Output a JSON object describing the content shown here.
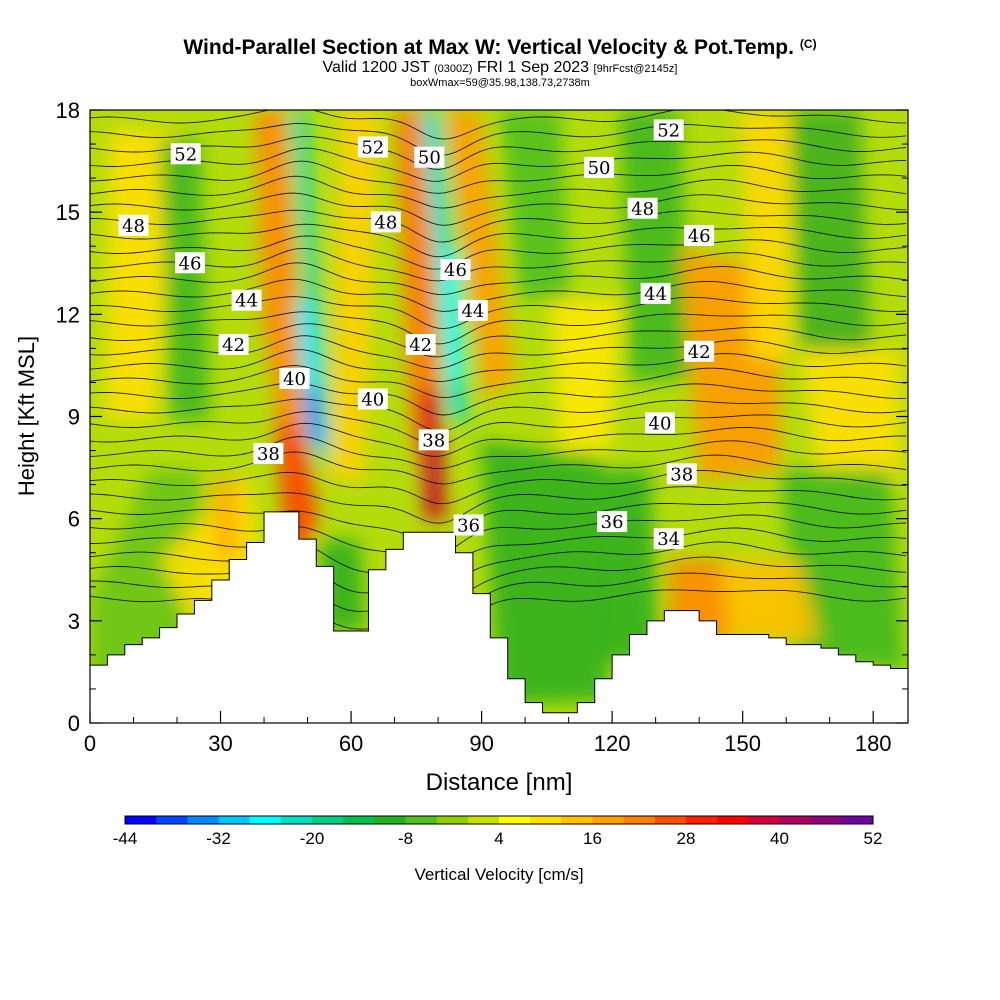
{
  "header": {
    "title": "Wind-Parallel Section at Max W: Vertical Velocity & Pot.Temp.",
    "copyright": "(C)",
    "valid_prefix": "Valid 1200 JST",
    "valid_utc": "(0300Z)",
    "valid_date": "FRI 1 Sep 2023",
    "forecast": "[9hrFcst@2145z]",
    "box_info": "boxWmax=59@35.98,138.73,2738m"
  },
  "chart_data": {
    "type": "heatmap",
    "xlabel": "Distance [nm]",
    "ylabel": "Height [Kft MSL]",
    "xlim": [
      0,
      188
    ],
    "ylim": [
      0,
      18
    ],
    "x_ticks": [
      "0",
      "30",
      "60",
      "90",
      "120",
      "150",
      "180"
    ],
    "y_ticks": [
      "0",
      "3",
      "6",
      "9",
      "12",
      "15",
      "18"
    ],
    "colorbar": {
      "label": "Vertical Velocity [cm/s]",
      "tick_labels": [
        "-44",
        "-32",
        "-20",
        "-8",
        "4",
        "16",
        "28",
        "40",
        "52"
      ],
      "colors": [
        "#0000ff",
        "#0044ff",
        "#0088ff",
        "#00c8ff",
        "#00ffff",
        "#00e0c0",
        "#00d080",
        "#00c050",
        "#20b020",
        "#50c020",
        "#90d000",
        "#c8e000",
        "#ffff00",
        "#ffe000",
        "#ffc000",
        "#ffa000",
        "#ff8000",
        "#ff5000",
        "#ff2000",
        "#ff0000",
        "#d0003a",
        "#b00060",
        "#900080",
        "#7000a0"
      ]
    },
    "terrain_kft": [
      [
        0,
        1.7
      ],
      [
        4,
        2.0
      ],
      [
        8,
        2.3
      ],
      [
        12,
        2.5
      ],
      [
        16,
        2.8
      ],
      [
        20,
        3.2
      ],
      [
        24,
        3.6
      ],
      [
        28,
        4.2
      ],
      [
        32,
        4.8
      ],
      [
        36,
        5.3
      ],
      [
        40,
        6.2
      ],
      [
        44,
        6.2
      ],
      [
        48,
        5.4
      ],
      [
        52,
        4.6
      ],
      [
        56,
        2.7
      ],
      [
        60,
        2.7
      ],
      [
        64,
        4.5
      ],
      [
        68,
        5.1
      ],
      [
        72,
        5.6
      ],
      [
        76,
        5.6
      ],
      [
        80,
        5.6
      ],
      [
        84,
        5.0
      ],
      [
        88,
        3.8
      ],
      [
        92,
        2.5
      ],
      [
        96,
        1.3
      ],
      [
        100,
        0.6
      ],
      [
        104,
        0.3
      ],
      [
        108,
        0.3
      ],
      [
        112,
        0.6
      ],
      [
        116,
        1.3
      ],
      [
        120,
        2.0
      ],
      [
        124,
        2.6
      ],
      [
        128,
        3.0
      ],
      [
        132,
        3.3
      ],
      [
        136,
        3.3
      ],
      [
        140,
        3.0
      ],
      [
        144,
        2.6
      ],
      [
        148,
        2.6
      ],
      [
        152,
        2.6
      ],
      [
        156,
        2.5
      ],
      [
        160,
        2.3
      ],
      [
        164,
        2.3
      ],
      [
        168,
        2.2
      ],
      [
        172,
        2.0
      ],
      [
        176,
        1.8
      ],
      [
        180,
        1.7
      ],
      [
        184,
        1.6
      ],
      [
        188,
        1.3
      ]
    ],
    "contour_labels": [
      {
        "text": "52",
        "x": 22,
        "y": 16.7
      },
      {
        "text": "52",
        "x": 65,
        "y": 16.9
      },
      {
        "text": "50",
        "x": 78,
        "y": 16.6
      },
      {
        "text": "52",
        "x": 133,
        "y": 17.4
      },
      {
        "text": "50",
        "x": 117,
        "y": 16.3
      },
      {
        "text": "48",
        "x": 10,
        "y": 14.6
      },
      {
        "text": "48",
        "x": 68,
        "y": 14.7
      },
      {
        "text": "48",
        "x": 127,
        "y": 15.1
      },
      {
        "text": "46",
        "x": 23,
        "y": 13.5
      },
      {
        "text": "46",
        "x": 84,
        "y": 13.3
      },
      {
        "text": "46",
        "x": 140,
        "y": 14.3
      },
      {
        "text": "44",
        "x": 36,
        "y": 12.4
      },
      {
        "text": "44",
        "x": 88,
        "y": 12.1
      },
      {
        "text": "44",
        "x": 130,
        "y": 12.6
      },
      {
        "text": "42",
        "x": 33,
        "y": 11.1
      },
      {
        "text": "42",
        "x": 76,
        "y": 11.1
      },
      {
        "text": "42",
        "x": 140,
        "y": 10.9
      },
      {
        "text": "40",
        "x": 47,
        "y": 10.1
      },
      {
        "text": "40",
        "x": 65,
        "y": 9.5
      },
      {
        "text": "40",
        "x": 131,
        "y": 8.8
      },
      {
        "text": "38",
        "x": 41,
        "y": 7.9
      },
      {
        "text": "38",
        "x": 79,
        "y": 8.3
      },
      {
        "text": "38",
        "x": 136,
        "y": 7.3
      },
      {
        "text": "36",
        "x": 87,
        "y": 5.8
      },
      {
        "text": "36",
        "x": 120,
        "y": 5.9
      },
      {
        "text": "34",
        "x": 133,
        "y": 5.4
      }
    ]
  }
}
